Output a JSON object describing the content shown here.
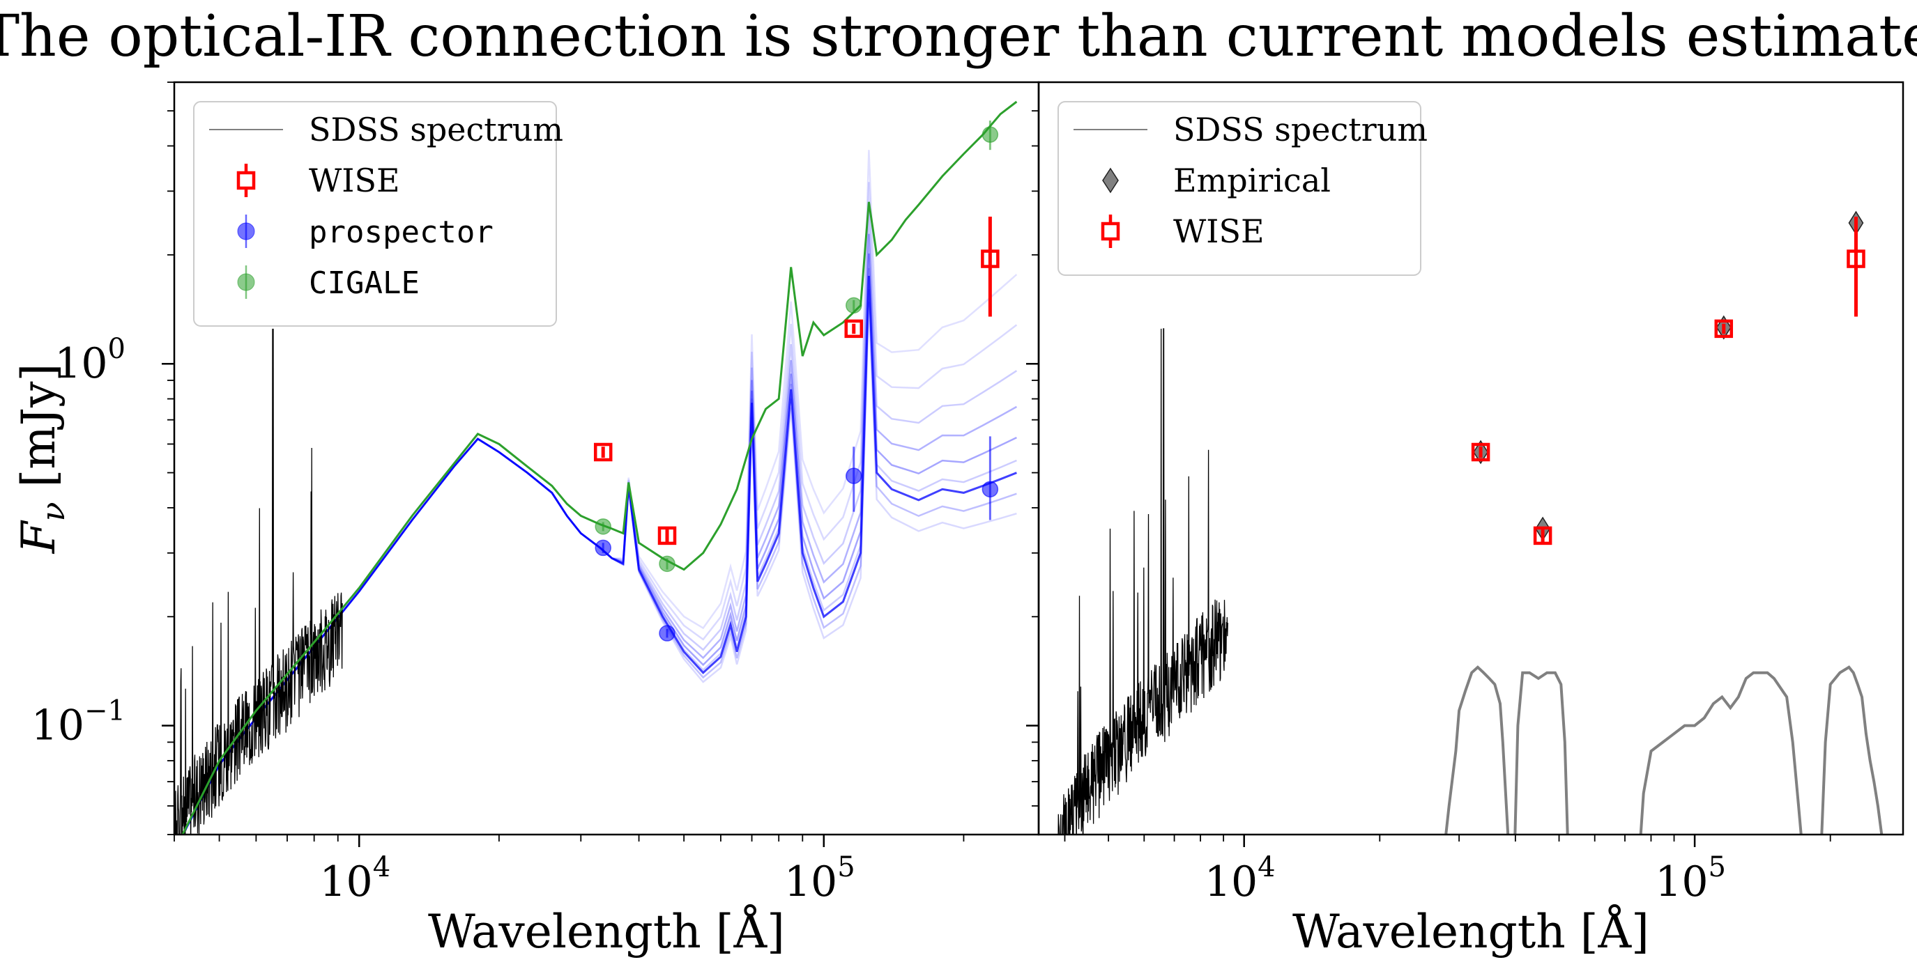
{
  "figure": {
    "title": "The optical-IR connection is stronger than current models estimate"
  },
  "chart_data": [
    {
      "type": "scatter",
      "panel": "left",
      "xlabel": "Wavelength [Å]",
      "ylabel": "F_ν [mJy]",
      "x_scale": "log",
      "y_scale": "log",
      "xlim": [
        4000,
        290000
      ],
      "ylim": [
        0.05,
        6.0
      ],
      "xticks": [
        {
          "value": 10000,
          "base": "10",
          "exp": "4"
        },
        {
          "value": 100000,
          "base": "10",
          "exp": "5"
        }
      ],
      "yticks": [
        {
          "value": 0.1,
          "base": "10",
          "exp": "−1"
        },
        {
          "value": 1.0,
          "base": "10",
          "exp": "0"
        }
      ],
      "grid": false,
      "legend_position": "top-left",
      "legend": [
        {
          "label": "SDSS spectrum",
          "marker": "line",
          "color": "#808080",
          "mono": false
        },
        {
          "label": "WISE",
          "marker": "square-errorbar",
          "color": "#ff0000",
          "mono": false
        },
        {
          "label": "prospector",
          "marker": "circle-errorbar",
          "color": "#0000ff",
          "mono": true
        },
        {
          "label": "CIGALE",
          "marker": "circle-errorbar",
          "color": "#2ca02c",
          "mono": true
        }
      ],
      "series": [
        {
          "name": "SDSS spectrum",
          "kind": "noisy-spectrum",
          "color": "#000000",
          "x": [
            3800,
            4000,
            4500,
            5000,
            5500,
            6000,
            6500,
            7000,
            7500,
            8000,
            8500,
            9000,
            9200
          ],
          "y": [
            0.045,
            0.052,
            0.068,
            0.082,
            0.095,
            0.107,
            0.12,
            0.132,
            0.145,
            0.16,
            0.173,
            0.185,
            0.19
          ]
        },
        {
          "name": "CIGALE",
          "kind": "model-line",
          "color": "#2ca02c",
          "x": [
            4000,
            5000,
            6000,
            8000,
            10000,
            13000,
            16000,
            18000,
            20000,
            23000,
            26000,
            28000,
            30000,
            33000,
            35000,
            37000,
            38000,
            40000,
            45000,
            50000,
            55000,
            60000,
            65000,
            70000,
            75000,
            80000,
            85000,
            90000,
            95000,
            100000,
            110000,
            120000,
            125000,
            130000,
            140000,
            150000,
            160000,
            180000,
            200000,
            220000,
            240000,
            260000
          ],
          "y": [
            0.045,
            0.08,
            0.11,
            0.17,
            0.24,
            0.38,
            0.53,
            0.64,
            0.6,
            0.52,
            0.46,
            0.41,
            0.38,
            0.36,
            0.35,
            0.34,
            0.47,
            0.32,
            0.29,
            0.27,
            0.3,
            0.36,
            0.45,
            0.62,
            0.75,
            0.8,
            1.85,
            1.05,
            1.3,
            1.2,
            1.3,
            1.45,
            2.8,
            2.0,
            2.2,
            2.5,
            2.75,
            3.3,
            3.8,
            4.3,
            4.9,
            5.3
          ]
        }
      ],
      "model_family": {
        "name": "prospector",
        "color": "#0000ff",
        "x": [
          4000,
          5000,
          6000,
          8000,
          10000,
          13000,
          16000,
          18000,
          20000,
          23000,
          26000,
          28000,
          30000,
          33000,
          35000,
          37000,
          38000,
          40000,
          45000,
          50000,
          55000,
          60000,
          63000,
          65000,
          68000,
          70000,
          72000,
          75000,
          80000,
          85000,
          90000,
          95000,
          100000,
          110000,
          120000,
          125000,
          130000,
          140000,
          160000,
          180000,
          200000,
          220000,
          240000,
          260000
        ],
        "y": [
          0.045,
          0.078,
          0.105,
          0.165,
          0.235,
          0.37,
          0.52,
          0.62,
          0.57,
          0.5,
          0.44,
          0.38,
          0.34,
          0.31,
          0.29,
          0.28,
          0.46,
          0.27,
          0.2,
          0.16,
          0.14,
          0.155,
          0.19,
          0.16,
          0.2,
          0.78,
          0.25,
          0.28,
          0.34,
          0.85,
          0.3,
          0.24,
          0.2,
          0.22,
          0.3,
          1.75,
          0.5,
          0.45,
          0.42,
          0.45,
          0.44,
          0.46,
          0.48,
          0.5
        ]
      },
      "points": [
        {
          "name": "WISE",
          "color": "#ff0000",
          "marker": "square",
          "x": [
            33500,
            46000,
            116000,
            228000
          ],
          "y": [
            0.57,
            0.335,
            1.25,
            1.95
          ],
          "yerr_low": [
            0.02,
            0.015,
            0.04,
            0.6
          ],
          "yerr_high": [
            0.02,
            0.015,
            0.04,
            0.6
          ]
        },
        {
          "name": "prospector",
          "color": "#0000ff",
          "marker": "circle",
          "x": [
            33500,
            46000,
            116000,
            228000
          ],
          "y": [
            0.31,
            0.18,
            0.49,
            0.45
          ],
          "yerr_low": [
            0.01,
            0.005,
            0.1,
            0.08
          ],
          "yerr_high": [
            0.01,
            0.005,
            0.1,
            0.18
          ]
        },
        {
          "name": "CIGALE",
          "color": "#2ca02c",
          "marker": "circle",
          "x": [
            33500,
            46000,
            116000,
            228000
          ],
          "y": [
            0.355,
            0.28,
            1.45,
            4.3
          ],
          "yerr_low": [
            0.01,
            0.01,
            0.05,
            0.4
          ],
          "yerr_high": [
            0.01,
            0.01,
            0.05,
            0.4
          ]
        }
      ]
    },
    {
      "type": "scatter",
      "panel": "right",
      "xlabel": "Wavelength [Å]",
      "ylabel": "",
      "x_scale": "log",
      "y_scale": "log",
      "xlim": [
        3500,
        290000
      ],
      "ylim": [
        0.05,
        6.0
      ],
      "xticks": [
        {
          "value": 10000,
          "base": "10",
          "exp": "4"
        },
        {
          "value": 100000,
          "base": "10",
          "exp": "5"
        }
      ],
      "yticks": [],
      "grid": false,
      "legend_position": "top-left",
      "legend": [
        {
          "label": "SDSS spectrum",
          "marker": "line",
          "color": "#808080",
          "mono": false
        },
        {
          "label": "Empirical",
          "marker": "diamond",
          "color": "#555555",
          "mono": false
        },
        {
          "label": "WISE",
          "marker": "square-errorbar",
          "color": "#ff0000",
          "mono": false
        }
      ],
      "series": [
        {
          "name": "SDSS spectrum",
          "kind": "noisy-spectrum",
          "color": "#000000",
          "x": [
            3800,
            4000,
            4500,
            5000,
            5500,
            6000,
            6500,
            7000,
            7500,
            8000,
            8500,
            9000,
            9200
          ],
          "y": [
            0.045,
            0.052,
            0.068,
            0.082,
            0.095,
            0.107,
            0.12,
            0.132,
            0.145,
            0.16,
            0.173,
            0.185,
            0.19
          ]
        },
        {
          "name": "W1 filter",
          "kind": "filter-curve",
          "color": "#808080",
          "x": [
            27500,
            28500,
            29500,
            30000,
            31000,
            32000,
            33000,
            34000,
            35000,
            36000,
            37000,
            37500,
            38500,
            39500
          ],
          "y": [
            0.04,
            0.06,
            0.085,
            0.11,
            0.125,
            0.14,
            0.145,
            0.14,
            0.135,
            0.13,
            0.115,
            0.09,
            0.05,
            0.03
          ]
        },
        {
          "name": "W2 filter",
          "kind": "filter-curve",
          "color": "#808080",
          "x": [
            39500,
            40500,
            41500,
            43000,
            45000,
            47000,
            49000,
            50500,
            51500,
            52500
          ],
          "y": [
            0.03,
            0.1,
            0.14,
            0.14,
            0.135,
            0.14,
            0.14,
            0.13,
            0.09,
            0.04
          ]
        },
        {
          "name": "W3 filter",
          "kind": "filter-curve",
          "color": "#808080",
          "x": [
            75000,
            77000,
            80000,
            85000,
            90000,
            95000,
            100000,
            105000,
            110000,
            115000,
            120000,
            125000,
            130000,
            135000,
            140000,
            145000,
            150000,
            160000,
            165000,
            170000,
            175000
          ],
          "y": [
            0.04,
            0.065,
            0.085,
            0.09,
            0.095,
            0.1,
            0.1,
            0.105,
            0.115,
            0.12,
            0.112,
            0.12,
            0.135,
            0.14,
            0.14,
            0.14,
            0.135,
            0.12,
            0.09,
            0.06,
            0.04
          ]
        },
        {
          "name": "W4 filter",
          "kind": "filter-curve",
          "color": "#808080",
          "x": [
            190000,
            195000,
            200000,
            210000,
            220000,
            225000,
            230000,
            235000,
            240000,
            245000,
            250000,
            255000,
            260000
          ],
          "y": [
            0.04,
            0.09,
            0.13,
            0.14,
            0.145,
            0.14,
            0.13,
            0.12,
            0.095,
            0.08,
            0.07,
            0.06,
            0.05
          ]
        }
      ],
      "points": [
        {
          "name": "Empirical",
          "color": "#555555",
          "marker": "diamond",
          "x": [
            33500,
            46000,
            116000,
            228000
          ],
          "y": [
            0.57,
            0.35,
            1.26,
            2.45
          ],
          "yerr_low": [
            0,
            0,
            0,
            0
          ],
          "yerr_high": [
            0,
            0,
            0,
            0
          ]
        },
        {
          "name": "WISE",
          "color": "#ff0000",
          "marker": "square",
          "x": [
            33500,
            46000,
            116000,
            228000
          ],
          "y": [
            0.57,
            0.335,
            1.25,
            1.95
          ],
          "yerr_low": [
            0.02,
            0.015,
            0.04,
            0.6
          ],
          "yerr_high": [
            0.02,
            0.015,
            0.04,
            0.6
          ]
        }
      ]
    }
  ]
}
